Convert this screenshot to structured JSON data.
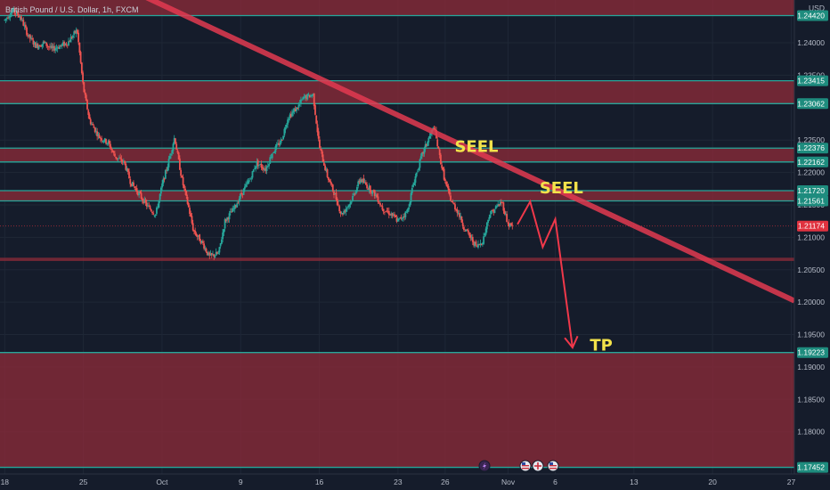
{
  "chart_data": {
    "type": "candlestick",
    "title": "British Pound / U.S. Dollar, 1h, FXCM",
    "currency": "USD",
    "price_ticks": [
      1.24,
      1.235,
      1.225,
      1.22,
      1.215,
      1.21,
      1.205,
      1.2,
      1.195,
      1.19,
      1.185,
      1.18
    ],
    "price_tick_labels": [
      "1.24000",
      "1.23500",
      "1.22500",
      "1.22000",
      "1.21500",
      "1.21000",
      "1.20500",
      "1.20000",
      "1.19500",
      "1.19000",
      "1.18500",
      "1.18000"
    ],
    "x_ticks": [
      {
        "label": "18",
        "slot": 0
      },
      {
        "label": "25",
        "slot": 5
      },
      {
        "label": "Oct",
        "slot": 10
      },
      {
        "label": "9",
        "slot": 15
      },
      {
        "label": "16",
        "slot": 20
      },
      {
        "label": "23",
        "slot": 25
      },
      {
        "label": "26",
        "slot": 28
      },
      {
        "label": "Nov",
        "slot": 32
      },
      {
        "label": "6",
        "slot": 35
      },
      {
        "label": "13",
        "slot": 40
      },
      {
        "label": "20",
        "slot": 45
      },
      {
        "label": "27",
        "slot": 50
      }
    ],
    "price_range": [
      1.1735,
      1.2466
    ],
    "slot_range": [
      -0.3,
      50.2
    ],
    "levels": [
      {
        "value": 1.2442,
        "label": "1.24420"
      },
      {
        "value": 1.23415,
        "label": "1.23415"
      },
      {
        "value": 1.23062,
        "label": "1.23062"
      },
      {
        "value": 1.22376,
        "label": "1.22376"
      },
      {
        "value": 1.22162,
        "label": "1.22162"
      },
      {
        "value": 1.2172,
        "label": "1.21720"
      },
      {
        "value": 1.21561,
        "label": "1.21561"
      },
      {
        "value": 1.19223,
        "label": "1.19223"
      },
      {
        "value": 1.17452,
        "label": "1.17452"
      }
    ],
    "current_price": {
      "value": 1.21174,
      "label": "1.21174",
      "color": "#e0323f"
    },
    "zones": [
      {
        "from": 1.2442,
        "to": 1.2466
      },
      {
        "from": 1.23062,
        "to": 1.23415
      },
      {
        "from": 1.22162,
        "to": 1.22376
      },
      {
        "from": 1.21561,
        "to": 1.2172
      },
      {
        "from": 1.20635,
        "to": 1.20685
      },
      {
        "from": 1.17452,
        "to": 1.19223
      }
    ],
    "trendline": [
      {
        "slot": 9.0,
        "price": 1.247
      },
      {
        "slot": 50.2,
        "price": 1.2002
      }
    ],
    "price_path": [
      [
        0.0,
        1.2435
      ],
      [
        0.5,
        1.245
      ],
      [
        1.0,
        1.244
      ],
      [
        1.5,
        1.241
      ],
      [
        2.0,
        1.2395
      ],
      [
        2.5,
        1.24
      ],
      [
        3.0,
        1.239
      ],
      [
        3.5,
        1.2395
      ],
      [
        4.0,
        1.24
      ],
      [
        4.6,
        1.242
      ],
      [
        5.0,
        1.233
      ],
      [
        5.4,
        1.228
      ],
      [
        6.0,
        1.2255
      ],
      [
        6.6,
        1.2245
      ],
      [
        7.0,
        1.2225
      ],
      [
        7.6,
        1.2215
      ],
      [
        8.0,
        1.2185
      ],
      [
        8.6,
        1.2165
      ],
      [
        9.0,
        1.215
      ],
      [
        9.6,
        1.2135
      ],
      [
        10.0,
        1.218
      ],
      [
        10.4,
        1.2215
      ],
      [
        10.8,
        1.2255
      ],
      [
        11.0,
        1.2225
      ],
      [
        11.3,
        1.2185
      ],
      [
        11.7,
        1.2145
      ],
      [
        12.0,
        1.211
      ],
      [
        12.6,
        1.209
      ],
      [
        13.0,
        1.207
      ],
      [
        13.6,
        1.2075
      ],
      [
        14.0,
        1.2125
      ],
      [
        14.6,
        1.2145
      ],
      [
        15.0,
        1.2165
      ],
      [
        15.6,
        1.219
      ],
      [
        16.0,
        1.2215
      ],
      [
        16.6,
        1.2205
      ],
      [
        17.0,
        1.223
      ],
      [
        17.6,
        1.225
      ],
      [
        18.0,
        1.2285
      ],
      [
        18.6,
        1.23
      ],
      [
        19.0,
        1.2315
      ],
      [
        19.6,
        1.232
      ],
      [
        20.0,
        1.224
      ],
      [
        20.5,
        1.2195
      ],
      [
        21.0,
        1.2165
      ],
      [
        21.4,
        1.2135
      ],
      [
        22.0,
        1.2155
      ],
      [
        22.6,
        1.219
      ],
      [
        23.0,
        1.218
      ],
      [
        23.6,
        1.2165
      ],
      [
        24.0,
        1.2145
      ],
      [
        24.6,
        1.2135
      ],
      [
        25.0,
        1.2125
      ],
      [
        25.6,
        1.214
      ],
      [
        26.0,
        1.2185
      ],
      [
        26.5,
        1.2225
      ],
      [
        27.0,
        1.2255
      ],
      [
        27.3,
        1.227
      ],
      [
        27.6,
        1.223
      ],
      [
        28.0,
        1.2185
      ],
      [
        28.4,
        1.2155
      ],
      [
        28.8,
        1.214
      ],
      [
        29.2,
        1.2115
      ],
      [
        29.6,
        1.21
      ],
      [
        30.0,
        1.2085
      ],
      [
        30.4,
        1.2095
      ],
      [
        30.8,
        1.2135
      ],
      [
        31.2,
        1.2145
      ],
      [
        31.6,
        1.2155
      ],
      [
        32.0,
        1.212
      ],
      [
        32.3,
        1.2117
      ]
    ],
    "projection": [
      [
        32.6,
        1.212
      ],
      [
        33.4,
        1.2155
      ],
      [
        34.2,
        1.2085
      ],
      [
        35.0,
        1.2128
      ],
      [
        36.1,
        1.193
      ]
    ],
    "annotations": [
      {
        "text": "SEEL",
        "slot": 28.6,
        "price": 1.2232
      },
      {
        "text": "SEEL",
        "slot": 34.0,
        "price": 1.2168
      },
      {
        "text": "TP",
        "slot": 37.2,
        "price": 1.1925
      }
    ],
    "colors": {
      "background": "#151c2b",
      "zone_fill": "#8a2a38",
      "level_line": "#26a69a",
      "trendline": "#e23a50",
      "candle_up": "#26a69a",
      "candle_down": "#ef5350",
      "projection": "#f0384a",
      "annotation": "#f3e24a"
    },
    "event_icons": [
      "lightning-icon",
      "us-flag-icon",
      "uk-flag-icon",
      "us-flag-icon"
    ]
  }
}
